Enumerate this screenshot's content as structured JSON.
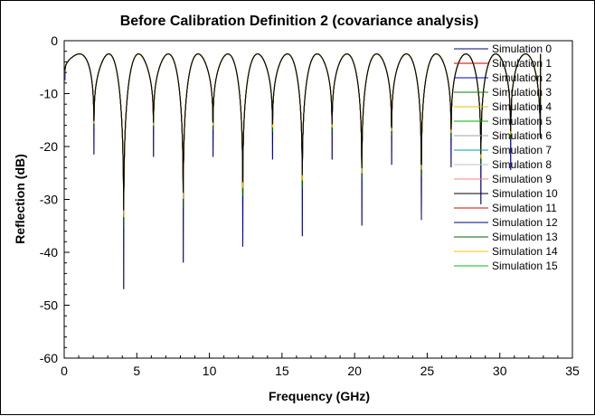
{
  "chart_data": {
    "type": "line",
    "title": "Before Calibration Definition 2 (covariance analysis)",
    "xlabel": "Frequency (GHz)",
    "ylabel": "Reflection (dB)",
    "xlim": [
      0,
      35
    ],
    "ylim": [
      -60,
      0
    ],
    "xticks": [
      0,
      5,
      10,
      15,
      20,
      25,
      30,
      35
    ],
    "yticks": [
      0,
      -10,
      -20,
      -30,
      -40,
      -50,
      -60
    ],
    "x_start": 0.05,
    "legend_position": "top-right",
    "grid": false,
    "peak_level": -2.5,
    "nulls": [
      {
        "x": 2.05,
        "y": -21.5
      },
      {
        "x": 4.1,
        "y": -47
      },
      {
        "x": 6.15,
        "y": -22
      },
      {
        "x": 8.2,
        "y": -42
      },
      {
        "x": 10.25,
        "y": -22
      },
      {
        "x": 12.3,
        "y": -39
      },
      {
        "x": 14.35,
        "y": -22.5
      },
      {
        "x": 16.4,
        "y": -37
      },
      {
        "x": 18.45,
        "y": -22.5
      },
      {
        "x": 20.5,
        "y": -35
      },
      {
        "x": 22.55,
        "y": -23.5
      },
      {
        "x": 24.6,
        "y": -34
      },
      {
        "x": 26.65,
        "y": -24
      },
      {
        "x": 28.7,
        "y": -31
      },
      {
        "x": 30.75,
        "y": -24.5
      },
      {
        "x": 32.8,
        "y": -27
      }
    ],
    "series": [
      {
        "name": "Simulation 0",
        "color": "#000080"
      },
      {
        "name": "Simulation 1",
        "color": "#c00000"
      },
      {
        "name": "Simulation 2",
        "color": "#0000c0"
      },
      {
        "name": "Simulation 3",
        "color": "#008000"
      },
      {
        "name": "Simulation 4",
        "color": "#e0c000"
      },
      {
        "name": "Simulation 5",
        "color": "#00b000"
      },
      {
        "name": "Simulation 6",
        "color": "#a0a0a0"
      },
      {
        "name": "Simulation 7",
        "color": "#00a0a0"
      },
      {
        "name": "Simulation 8",
        "color": "#c0c0c0"
      },
      {
        "name": "Simulation 9",
        "color": "#ff8080"
      },
      {
        "name": "Simulation 10",
        "color": "#000000"
      },
      {
        "name": "Simulation 11",
        "color": "#e00000"
      },
      {
        "name": "Simulation 12",
        "color": "#000090"
      },
      {
        "name": "Simulation 13",
        "color": "#006000"
      },
      {
        "name": "Simulation 14",
        "color": "#ffc000"
      },
      {
        "name": "Simulation 15",
        "color": "#00c000"
      }
    ]
  }
}
